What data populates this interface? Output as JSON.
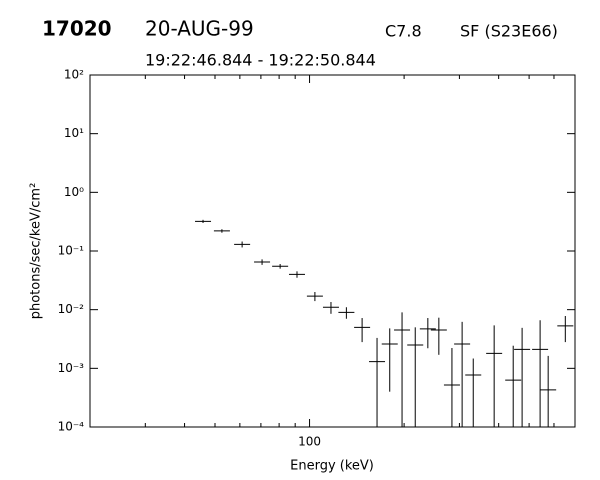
{
  "chart_data": {
    "type": "errorbar",
    "title": "17020",
    "date": "20-AUG-99",
    "goes_class": "C7.8",
    "location": "SF (S23E66)",
    "subtitle": "19:22:46.844 - 19:22:50.844",
    "xlabel": "Energy (keV)",
    "ylabel": "photons/sec/keV/cm²",
    "xscale": "log",
    "yscale": "log",
    "xlim": [
      20,
      700
    ],
    "ylim": [
      0.0001,
      100
    ],
    "xticks": [
      100
    ],
    "xminor": [
      20,
      30,
      40,
      50,
      60,
      70,
      80,
      90,
      200,
      300,
      400,
      500,
      600,
      700
    ],
    "yticks": [
      {
        "value": 0.0001,
        "label": "10⁻⁴"
      },
      {
        "value": 0.001,
        "label": "10⁻³"
      },
      {
        "value": 0.01,
        "label": "10⁻²"
      },
      {
        "value": 0.1,
        "label": "10⁻¹"
      },
      {
        "value": 1,
        "label": "10⁰"
      },
      {
        "value": 10,
        "label": "10¹"
      },
      {
        "value": 100,
        "label": "10²"
      }
    ],
    "color": "#000000",
    "x": [
      45.8,
      52.6,
      61,
      70.6,
      80.6,
      91.2,
      104,
      117,
      131,
      147,
      164,
      180,
      197,
      217,
      238,
      258,
      284,
      306,
      332,
      387,
      445,
      475,
      542,
      575,
      652
    ],
    "values": [
      0.32,
      0.22,
      0.13,
      0.065,
      0.055,
      0.04,
      0.017,
      0.011,
      0.009,
      0.005,
      0.0013,
      0.0026,
      0.0045,
      0.0025,
      0.0047,
      0.0045,
      0.00052,
      0.0026,
      0.00077,
      0.0018,
      0.00063,
      0.0021,
      0.0021,
      0.00043,
      0.0053
    ],
    "yerr": [
      0.02,
      0.015,
      0.015,
      0.007,
      0.005,
      0.005,
      0.003,
      0.0025,
      0.002,
      0.0022,
      0.002,
      0.0022,
      0.0045,
      0.0025,
      0.0025,
      0.0028,
      0.0017,
      0.0036,
      0.0007,
      0.0036,
      0.0018,
      0.0028,
      0.0045,
      0.0012,
      0.0025
    ]
  }
}
